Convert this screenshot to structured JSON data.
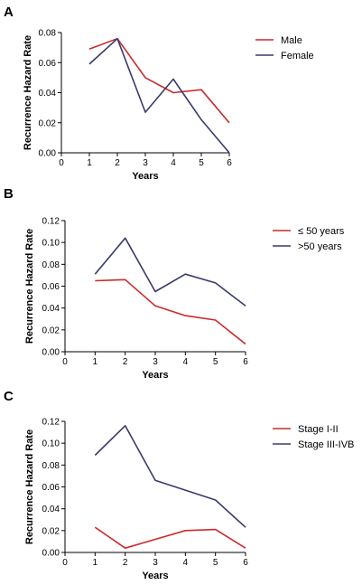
{
  "chart_data": [
    {
      "panel": "A",
      "type": "line",
      "xlabel": "Years",
      "ylabel": "Recurrence Hazard Rate",
      "x": [
        1,
        2,
        3,
        4,
        5,
        6
      ],
      "xlim": [
        0,
        6
      ],
      "xticks": [
        "0",
        "1",
        "2",
        "3",
        "4",
        "5",
        "6"
      ],
      "ylim": [
        0,
        0.08
      ],
      "yticks": [
        "0.00",
        "0.02",
        "0.04",
        "0.06",
        "0.08"
      ],
      "grid": false,
      "legend": "top-right",
      "series": [
        {
          "name": "Male",
          "color": "#cc2a2a",
          "values": [
            0.069,
            0.076,
            0.05,
            0.04,
            0.042,
            0.02
          ]
        },
        {
          "name": "Female",
          "color": "#3a3a6e",
          "values": [
            0.059,
            0.076,
            0.027,
            0.049,
            0.022,
            0.0
          ]
        }
      ]
    },
    {
      "panel": "B",
      "type": "line",
      "xlabel": "Years",
      "ylabel": "Recurrence Hazard Rate",
      "x": [
        1,
        2,
        3,
        4,
        5,
        6
      ],
      "xlim": [
        0,
        6
      ],
      "xticks": [
        "0",
        "1",
        "2",
        "3",
        "4",
        "5",
        "6"
      ],
      "ylim": [
        0,
        0.12
      ],
      "yticks": [
        "0.00",
        "0.02",
        "0.04",
        "0.06",
        "0.08",
        "0.10",
        "0.12"
      ],
      "grid": false,
      "legend": "top-right",
      "series": [
        {
          "name": "≤ 50 years",
          "color": "#cc2a2a",
          "values": [
            0.065,
            0.066,
            0.042,
            0.033,
            0.029,
            0.007
          ]
        },
        {
          "name": ">50 years",
          "color": "#3a3a6e",
          "values": [
            0.071,
            0.104,
            0.055,
            0.071,
            0.063,
            0.042
          ]
        }
      ]
    },
    {
      "panel": "C",
      "type": "line",
      "xlabel": "Years",
      "ylabel": "Recurrence Hazard Rate",
      "x": [
        1,
        2,
        3,
        4,
        5,
        6
      ],
      "xlim": [
        0,
        6
      ],
      "xticks": [
        "0",
        "1",
        "2",
        "3",
        "4",
        "5",
        "6"
      ],
      "ylim": [
        0,
        0.12
      ],
      "yticks": [
        "0.00",
        "0.02",
        "0.04",
        "0.06",
        "0.08",
        "0.10",
        "0.12"
      ],
      "grid": false,
      "legend": "top-right",
      "series": [
        {
          "name": "Stage I-II",
          "color": "#cc2a2a",
          "values": [
            0.023,
            0.004,
            0.012,
            0.02,
            0.021,
            0.004
          ]
        },
        {
          "name": "Stage III-IVB",
          "color": "#3a3a6e",
          "values": [
            0.089,
            0.116,
            0.066,
            0.057,
            0.048,
            0.023
          ]
        }
      ]
    }
  ]
}
